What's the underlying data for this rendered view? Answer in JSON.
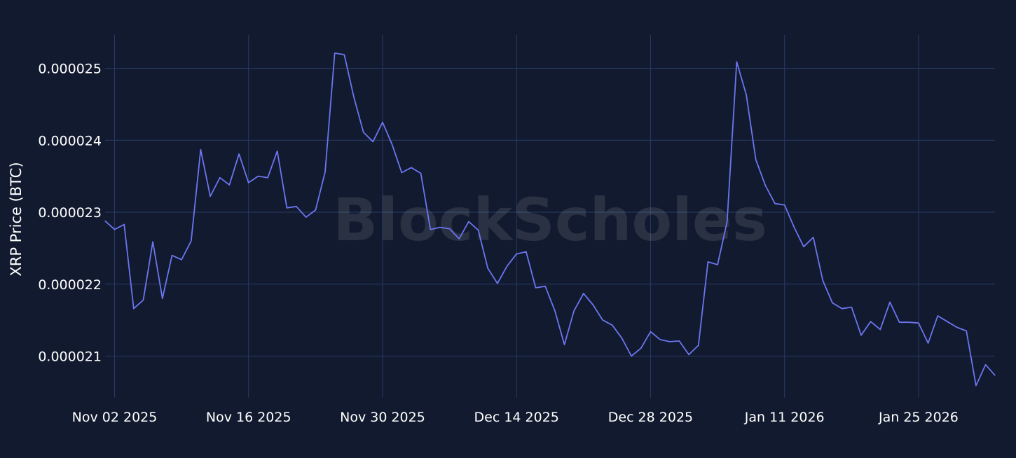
{
  "colors": {
    "background": "#111a2e",
    "grid": "#2a3a66",
    "line": "#6c75f0",
    "text": "#ffffff"
  },
  "watermark": "BlockScholes",
  "chart_data": {
    "type": "line",
    "ylabel": "XRP Price (BTC)",
    "xlabel": "",
    "grid": true,
    "xlim": [
      "2025-11-02",
      "2026-02-02"
    ],
    "ylim": [
      2.04e-05,
      2.55e-05
    ],
    "x_ticks": [
      {
        "date": "2025-11-02",
        "label": "Nov 02 2025"
      },
      {
        "date": "2025-11-16",
        "label": "Nov 16 2025"
      },
      {
        "date": "2025-11-30",
        "label": "Nov 30 2025"
      },
      {
        "date": "2025-12-14",
        "label": "Dec 14 2025"
      },
      {
        "date": "2025-12-28",
        "label": "Dec 28 2025"
      },
      {
        "date": "2026-01-11",
        "label": "Jan 11 2026"
      },
      {
        "date": "2026-01-25",
        "label": "Jan 25 2026"
      }
    ],
    "y_ticks": [
      {
        "value": 2.1e-05,
        "label": "0.000021"
      },
      {
        "value": 2.2e-05,
        "label": "0.000022"
      },
      {
        "value": 2.3e-05,
        "label": "0.000023"
      },
      {
        "value": 2.4e-05,
        "label": "0.000024"
      },
      {
        "value": 2.5e-05,
        "label": "0.000025"
      }
    ],
    "series": [
      {
        "color": "#6c75f0",
        "x": [
          "2025-11-01",
          "2025-11-02",
          "2025-11-03",
          "2025-11-04",
          "2025-11-05",
          "2025-11-06",
          "2025-11-07",
          "2025-11-08",
          "2025-11-09",
          "2025-11-10",
          "2025-11-11",
          "2025-11-12",
          "2025-11-13",
          "2025-11-14",
          "2025-11-15",
          "2025-11-16",
          "2025-11-17",
          "2025-11-18",
          "2025-11-19",
          "2025-11-20",
          "2025-11-21",
          "2025-11-22",
          "2025-11-23",
          "2025-11-24",
          "2025-11-25",
          "2025-11-26",
          "2025-11-27",
          "2025-11-28",
          "2025-11-29",
          "2025-11-30",
          "2025-12-01",
          "2025-12-02",
          "2025-12-03",
          "2025-12-04",
          "2025-12-05",
          "2025-12-06",
          "2025-12-07",
          "2025-12-08",
          "2025-12-09",
          "2025-12-10",
          "2025-12-11",
          "2025-12-12",
          "2025-12-13",
          "2025-12-14",
          "2025-12-15",
          "2025-12-16",
          "2025-12-17",
          "2025-12-18",
          "2025-12-19",
          "2025-12-20",
          "2025-12-21",
          "2025-12-22",
          "2025-12-23",
          "2025-12-24",
          "2025-12-25",
          "2025-12-26",
          "2025-12-27",
          "2025-12-28",
          "2025-12-29",
          "2025-12-30",
          "2025-12-31",
          "2026-01-01",
          "2026-01-02",
          "2026-01-03",
          "2026-01-04",
          "2026-01-05",
          "2026-01-06",
          "2026-01-07",
          "2026-01-08",
          "2026-01-09",
          "2026-01-10",
          "2026-01-11",
          "2026-01-12",
          "2026-01-13",
          "2026-01-14",
          "2026-01-15",
          "2026-01-16",
          "2026-01-17",
          "2026-01-18",
          "2026-01-19",
          "2026-01-20",
          "2026-01-21",
          "2026-01-22",
          "2026-01-23",
          "2026-01-24",
          "2026-01-25",
          "2026-01-26",
          "2026-01-27",
          "2026-01-28",
          "2026-01-29",
          "2026-01-30",
          "2026-01-31",
          "2026-02-01",
          "2026-02-02"
        ],
        "values": [
          2.288e-05,
          2.276e-05,
          2.283e-05,
          2.166e-05,
          2.178e-05,
          2.259e-05,
          2.18e-05,
          2.24e-05,
          2.234e-05,
          2.26e-05,
          2.387e-05,
          2.322e-05,
          2.348e-05,
          2.338e-05,
          2.381e-05,
          2.341e-05,
          2.35e-05,
          2.348e-05,
          2.385e-05,
          2.306e-05,
          2.308e-05,
          2.293e-05,
          2.303e-05,
          2.356e-05,
          2.521e-05,
          2.519e-05,
          2.46e-05,
          2.411e-05,
          2.398e-05,
          2.425e-05,
          2.394e-05,
          2.355e-05,
          2.362e-05,
          2.354e-05,
          2.276e-05,
          2.279e-05,
          2.277e-05,
          2.263e-05,
          2.287e-05,
          2.275e-05,
          2.222e-05,
          2.201e-05,
          2.225e-05,
          2.242e-05,
          2.245e-05,
          2.195e-05,
          2.197e-05,
          2.163e-05,
          2.116e-05,
          2.163e-05,
          2.187e-05,
          2.171e-05,
          2.15e-05,
          2.143e-05,
          2.125e-05,
          2.1e-05,
          2.111e-05,
          2.134e-05,
          2.123e-05,
          2.12e-05,
          2.121e-05,
          2.102e-05,
          2.115e-05,
          2.231e-05,
          2.227e-05,
          2.287e-05,
          2.509e-05,
          2.463e-05,
          2.373e-05,
          2.337e-05,
          2.312e-05,
          2.31e-05,
          2.279e-05,
          2.252e-05,
          2.265e-05,
          2.205e-05,
          2.174e-05,
          2.166e-05,
          2.168e-05,
          2.129e-05,
          2.148e-05,
          2.137e-05,
          2.175e-05,
          2.147e-05,
          2.147e-05,
          2.146e-05,
          2.118e-05,
          2.156e-05,
          2.148e-05,
          2.14e-05,
          2.135e-05,
          2.059e-05,
          2.088e-05,
          2.073e-05
        ]
      }
    ]
  }
}
